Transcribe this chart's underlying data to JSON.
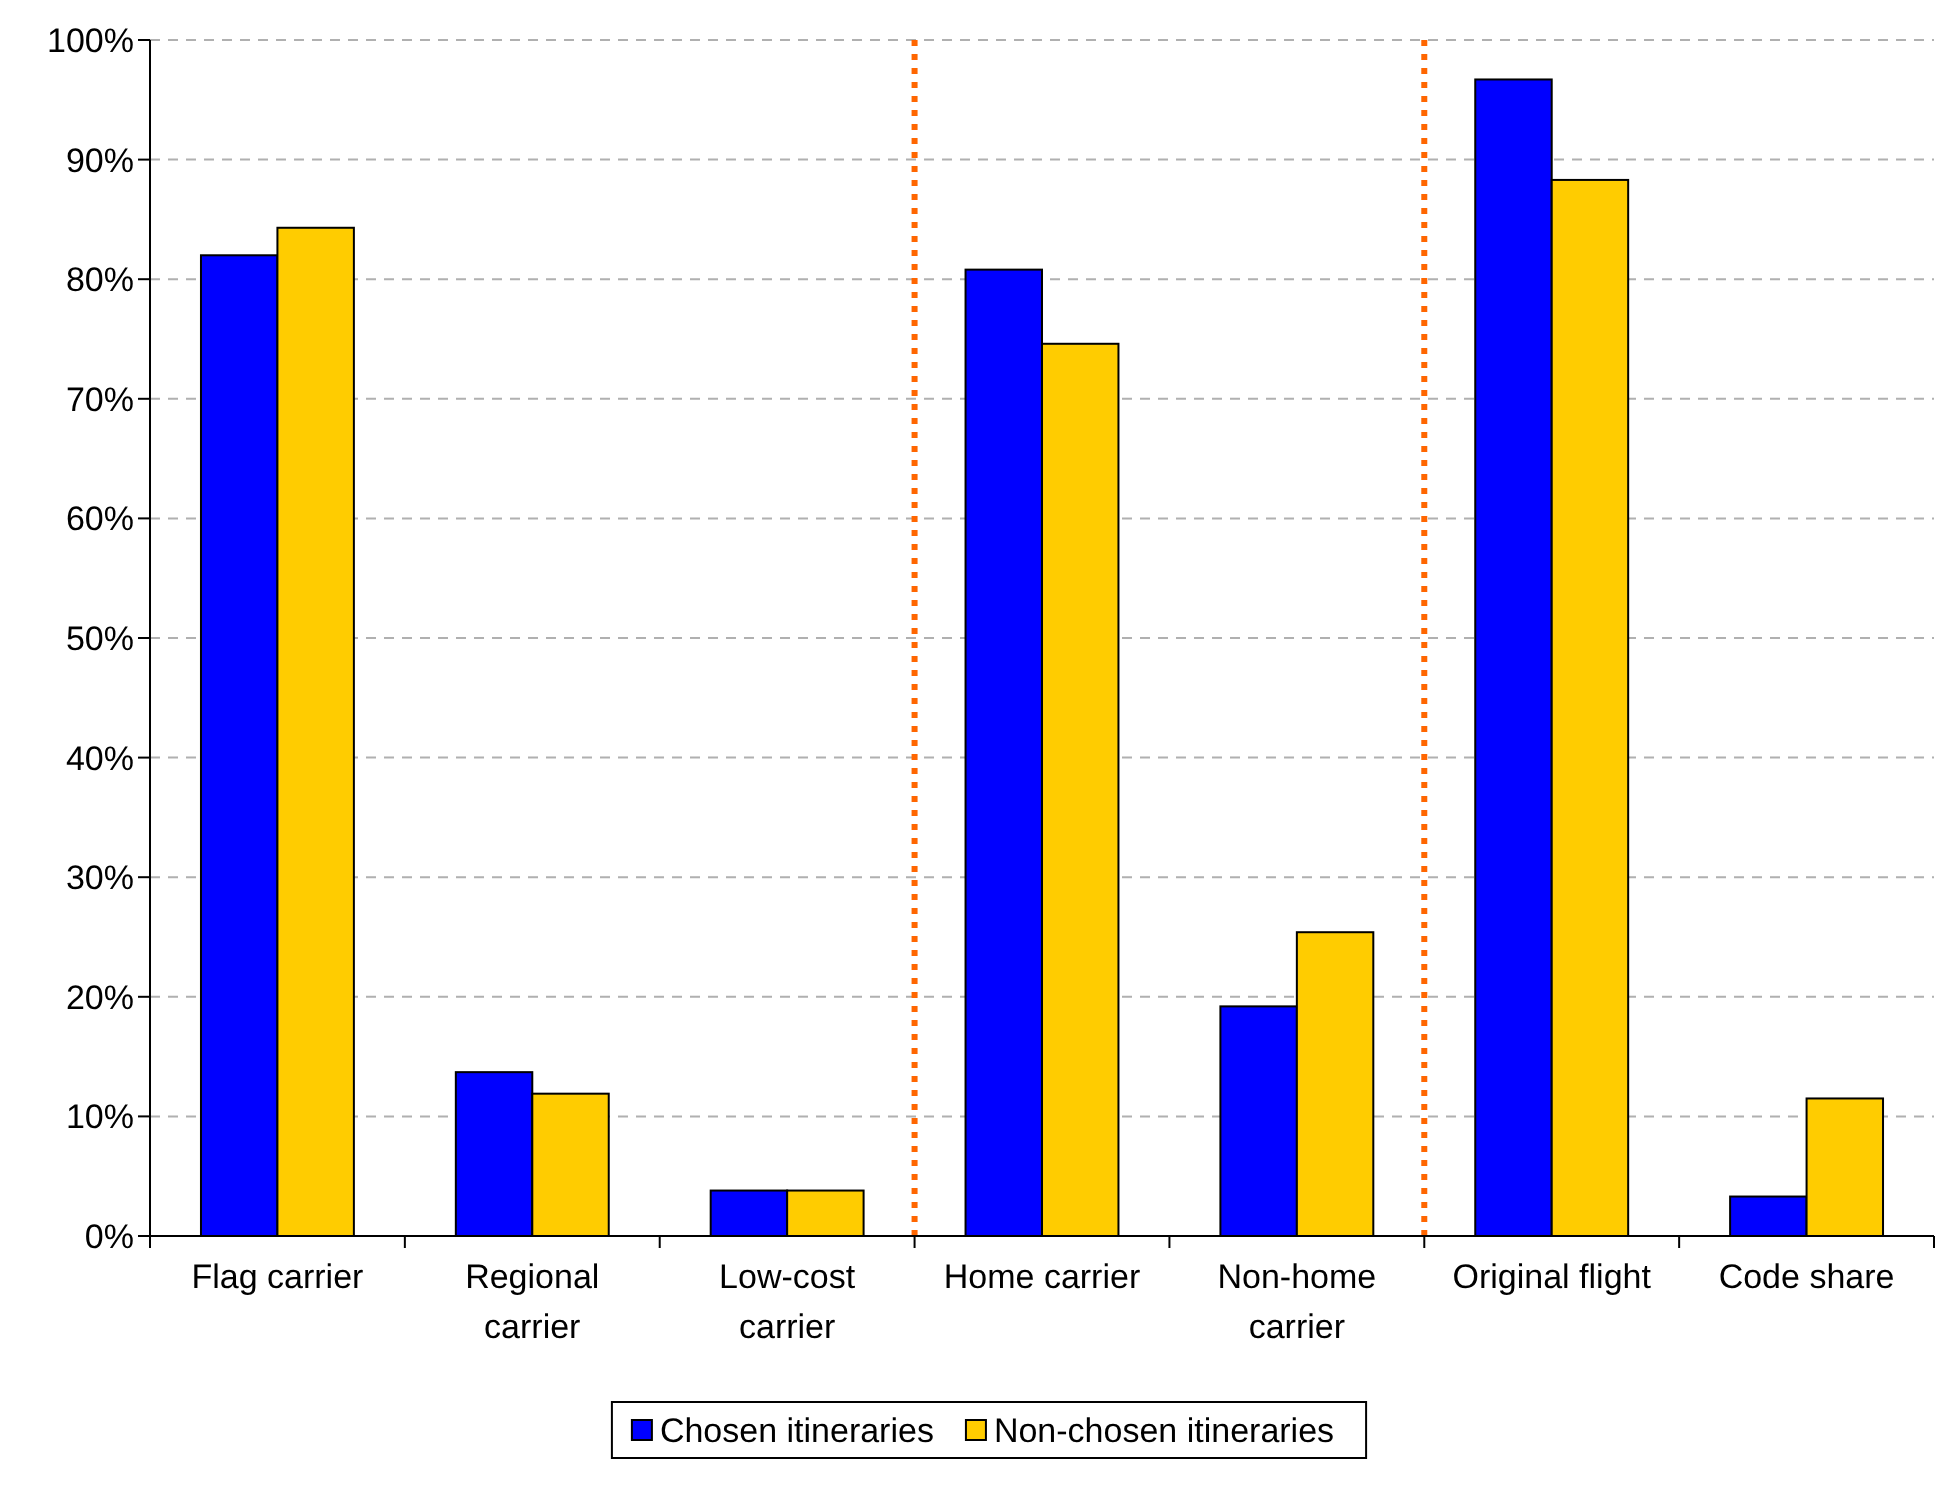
{
  "chart_data": {
    "type": "bar",
    "categories": [
      "Flag carrier",
      "Regional carrier",
      "Low-cost carrier",
      "Home carrier",
      "Non-home carrier",
      "Original flight",
      "Code share"
    ],
    "series": [
      {
        "name": "Chosen itineraries",
        "color": "#0000ff",
        "values": [
          82.0,
          13.7,
          3.8,
          80.8,
          19.2,
          96.7,
          3.3
        ]
      },
      {
        "name": "Non-chosen itineraries",
        "color": "#ffcc00",
        "values": [
          84.3,
          11.9,
          3.8,
          74.6,
          25.4,
          88.3,
          11.5
        ]
      }
    ],
    "ylim": [
      0,
      100
    ],
    "yticks": [
      {
        "value": 0,
        "label": "0%"
      },
      {
        "value": 10,
        "label": "10%"
      },
      {
        "value": 20,
        "label": "20%"
      },
      {
        "value": 30,
        "label": "30%"
      },
      {
        "value": 40,
        "label": "40%"
      },
      {
        "value": 50,
        "label": "50%"
      },
      {
        "value": 60,
        "label": "60%"
      },
      {
        "value": 70,
        "label": "70%"
      },
      {
        "value": 80,
        "label": "80%"
      },
      {
        "value": 90,
        "label": "90%"
      },
      {
        "value": 100,
        "label": "100%"
      }
    ],
    "grid": "y",
    "legend": "bottom"
  }
}
